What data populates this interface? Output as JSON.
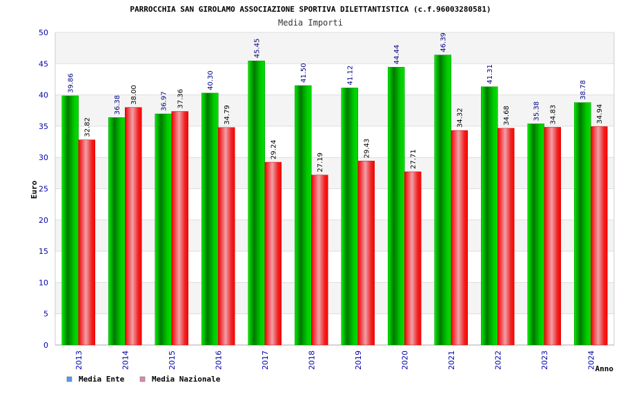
{
  "chart_data": {
    "type": "bar",
    "title": "PARROCCHIA SAN GIROLAMO ASSOCIAZIONE SPORTIVA DILETTANTISTICA (c.f.96003280581)",
    "subtitle": "Media Importi",
    "xlabel": "Anno",
    "ylabel": "Euro",
    "ylim": [
      0,
      50
    ],
    "yticks": [
      0,
      5,
      10,
      15,
      20,
      25,
      30,
      35,
      40,
      45,
      50
    ],
    "categories": [
      "2013",
      "2014",
      "2015",
      "2016",
      "2017",
      "2018",
      "2019",
      "2020",
      "2021",
      "2022",
      "2023",
      "2024"
    ],
    "series": [
      {
        "name": "Media Ente",
        "color": "#00aa00",
        "legend_color": "#5599ee",
        "values": [
          39.86,
          36.38,
          36.97,
          40.3,
          45.45,
          41.5,
          41.12,
          44.44,
          46.39,
          41.31,
          35.38,
          38.78
        ],
        "labels": [
          "39.86",
          "36.38",
          "36.97",
          "40.30",
          "45.45",
          "41.50",
          "41.12",
          "44.44",
          "46.39",
          "41.31",
          "35.38",
          "38.78"
        ]
      },
      {
        "name": "Media Nazionale",
        "color": "#ee0000",
        "legend_color": "#dd88aa",
        "values": [
          32.82,
          38.0,
          37.36,
          34.79,
          29.24,
          27.19,
          29.43,
          27.71,
          34.32,
          34.68,
          34.83,
          34.94
        ],
        "labels": [
          "32.82",
          "38.00",
          "37.36",
          "34.79",
          "29.24",
          "27.19",
          "29.43",
          "27.71",
          "34.32",
          "34.68",
          "34.83",
          "34.94"
        ]
      }
    ],
    "grid": true,
    "legend_position": "bottom-left"
  }
}
